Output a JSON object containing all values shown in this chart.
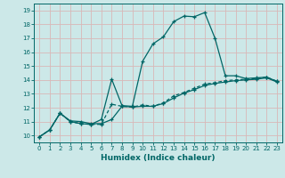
{
  "xlabel": "Humidex (Indice chaleur)",
  "bg_color": "#cce8e8",
  "grid_color": "#aacccc",
  "line_color": "#006666",
  "xlim": [
    -0.5,
    23.5
  ],
  "ylim": [
    9.5,
    19.5
  ],
  "xticks": [
    0,
    1,
    2,
    3,
    4,
    5,
    6,
    7,
    8,
    9,
    10,
    11,
    12,
    13,
    14,
    15,
    16,
    17,
    18,
    19,
    20,
    21,
    22,
    23
  ],
  "yticks": [
    10,
    11,
    12,
    13,
    14,
    15,
    16,
    17,
    18,
    19
  ],
  "line1_x": [
    0,
    1,
    2,
    3,
    4,
    5,
    6,
    7,
    8,
    9,
    10,
    11,
    12,
    13,
    14,
    15,
    16,
    17,
    18,
    19,
    20,
    21,
    22,
    23
  ],
  "line1_y": [
    9.9,
    10.4,
    11.6,
    11.0,
    10.85,
    10.8,
    10.8,
    12.25,
    12.1,
    12.05,
    12.2,
    12.1,
    12.35,
    12.85,
    13.1,
    13.4,
    13.7,
    13.8,
    13.95,
    14.0,
    14.05,
    14.1,
    14.2,
    13.9
  ],
  "line2_x": [
    0,
    1,
    2,
    3,
    4,
    5,
    6,
    7,
    8,
    9,
    10,
    11,
    12,
    13,
    14,
    15,
    16,
    17,
    18,
    19,
    20,
    21,
    22,
    23
  ],
  "line2_y": [
    9.9,
    10.4,
    11.6,
    11.0,
    10.85,
    10.8,
    11.15,
    14.05,
    12.15,
    12.1,
    15.35,
    16.6,
    17.1,
    18.2,
    18.6,
    18.55,
    18.85,
    17.0,
    14.3,
    14.3,
    14.1,
    14.15,
    14.2,
    13.9
  ],
  "line3_x": [
    0,
    1,
    2,
    3,
    4,
    5,
    6,
    7,
    8,
    9,
    10,
    11,
    12,
    13,
    14,
    15,
    16,
    17,
    18,
    19,
    20,
    21,
    22,
    23
  ],
  "line3_y": [
    9.9,
    10.4,
    11.6,
    11.05,
    11.0,
    10.85,
    10.85,
    11.15,
    12.1,
    12.05,
    12.1,
    12.1,
    12.3,
    12.7,
    13.05,
    13.3,
    13.6,
    13.75,
    13.85,
    13.95,
    14.0,
    14.05,
    14.15,
    13.85
  ]
}
